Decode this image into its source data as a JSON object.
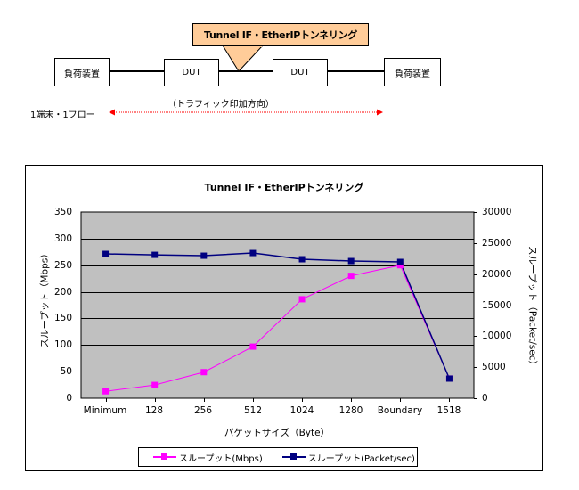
{
  "diagram": {
    "callout": "Tunnel IF・EtherIPトンネリング",
    "nodes": [
      {
        "label": "負荷装置"
      },
      {
        "label": "DUT"
      },
      {
        "label": "DUT"
      },
      {
        "label": "負荷装置"
      }
    ],
    "traffic_direction_label": "（トラフィック印加方向）",
    "flow_label": "1端末・1フロー",
    "colors": {
      "callout_fill": "#FFCC99",
      "arrow": "#FF0000"
    }
  },
  "chart_data": {
    "type": "line",
    "title": "Tunnel IF・EtherIPトンネリング",
    "xlabel": "パケットサイズ（Byte）",
    "ylabel": "スループット（Mbps）",
    "y2label": "スループット（Packet/sec）",
    "categories": [
      "Minimum",
      "128",
      "256",
      "512",
      "1024",
      "1280",
      "Boundary",
      "1518"
    ],
    "ylim": [
      0,
      350
    ],
    "y2lim": [
      0,
      30000
    ],
    "yticks": [
      "350",
      "300",
      "250",
      "200",
      "150",
      "100",
      "50",
      "0"
    ],
    "y2ticks": [
      "30000",
      "25000",
      "20000",
      "15000",
      "10000",
      "5000",
      "0"
    ],
    "grid": true,
    "plot_background": "#C0C0C0",
    "legend_position": "bottom",
    "series": [
      {
        "name": "スループット(Mbps)",
        "axis": "left",
        "color": "#FF00FF",
        "values": [
          13,
          25,
          49,
          97,
          186,
          230,
          250,
          37
        ]
      },
      {
        "name": "スループット(Packet/sec)",
        "axis": "right",
        "color": "#000080",
        "values": [
          23250,
          23100,
          22960,
          23390,
          22390,
          22100,
          21960,
          3160
        ]
      }
    ]
  }
}
